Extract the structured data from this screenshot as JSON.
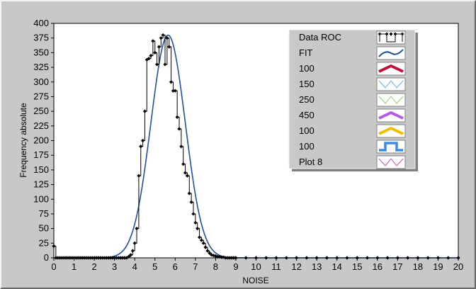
{
  "chart_data": {
    "type": "line",
    "title": "",
    "xlabel": "NOISE",
    "ylabel": "Frequency absolute",
    "xlim": [
      0,
      20
    ],
    "ylim": [
      0,
      400
    ],
    "x_ticks": [
      0,
      1,
      2,
      3,
      4,
      5,
      6,
      7,
      8,
      9,
      10,
      11,
      12,
      13,
      14,
      15,
      16,
      17,
      18,
      19,
      20
    ],
    "y_ticks": [
      0,
      25,
      50,
      75,
      100,
      125,
      150,
      175,
      200,
      225,
      250,
      275,
      300,
      325,
      350,
      375,
      400
    ],
    "grid": false,
    "legend_placement": "top-right",
    "legend": [
      {
        "label": "Data ROC",
        "color": "#000000",
        "swatch": "markers"
      },
      {
        "label": "FIT",
        "color": "#1f4fa0",
        "swatch": "zigzag"
      },
      {
        "label": "100",
        "color": "#c0103a",
        "swatch": "thick-zigzag"
      },
      {
        "label": "150",
        "color": "#5ab4e6",
        "swatch": "thin-zigzag"
      },
      {
        "label": "250",
        "color": "#8fd46a",
        "swatch": "thin-zigzag"
      },
      {
        "label": "450",
        "color": "#b45ae6",
        "swatch": "thick-zigzag"
      },
      {
        "label": "100",
        "color": "#f0c000",
        "swatch": "thick-zigzag"
      },
      {
        "label": "100",
        "color": "#3a8ae6",
        "swatch": "step"
      },
      {
        "label": "Plot 8",
        "color": "#c04fb0",
        "swatch": "thin-zigzag"
      }
    ],
    "series": [
      {
        "name": "Data ROC",
        "color": "#000000",
        "style": "step-markers",
        "x": [
          0.0,
          0.1,
          0.2,
          0.3,
          0.4,
          0.5,
          0.6,
          0.7,
          0.8,
          0.9,
          1.0,
          1.1,
          1.2,
          1.3,
          1.4,
          1.5,
          1.6,
          1.7,
          1.8,
          1.9,
          2.0,
          2.1,
          2.2,
          2.3,
          2.4,
          2.5,
          2.6,
          2.7,
          2.8,
          2.9,
          3.0,
          3.1,
          3.2,
          3.3,
          3.4,
          3.5,
          3.6,
          3.7,
          3.8,
          3.9,
          4.0,
          4.1,
          4.2,
          4.3,
          4.4,
          4.5,
          4.6,
          4.7,
          4.8,
          4.9,
          5.0,
          5.1,
          5.2,
          5.3,
          5.4,
          5.5,
          5.6,
          5.7,
          5.8,
          5.9,
          6.0,
          6.1,
          6.2,
          6.3,
          6.4,
          6.5,
          6.6,
          6.7,
          6.8,
          6.9,
          7.0,
          7.1,
          7.2,
          7.3,
          7.4,
          7.5,
          7.6,
          7.7,
          7.8,
          7.9,
          8.0,
          8.1,
          8.2,
          8.3,
          8.4,
          8.5,
          8.6,
          8.7,
          8.8,
          8.9,
          9.0,
          9.5,
          10.0,
          10.5,
          11.0,
          11.5,
          12.0,
          12.5,
          13.0,
          13.5,
          14.0,
          14.5,
          15.0,
          15.5,
          16.0,
          16.5,
          17.0,
          17.5,
          18.0,
          18.5,
          19.0,
          19.5,
          20.0
        ],
        "y": [
          20,
          0,
          0,
          0,
          0,
          0,
          0,
          0,
          0,
          0,
          0,
          0,
          0,
          0,
          0,
          0,
          0,
          0,
          0,
          0,
          0,
          0,
          0,
          0,
          0,
          0,
          0,
          0,
          0,
          0,
          0,
          0,
          0,
          0,
          0,
          0,
          0,
          2,
          5,
          12,
          25,
          50,
          140,
          190,
          200,
          250,
          338,
          340,
          345,
          370,
          350,
          330,
          360,
          375,
          380,
          330,
          375,
          360,
          300,
          285,
          285,
          240,
          220,
          190,
          160,
          145,
          140,
          110,
          95,
          75,
          60,
          50,
          35,
          30,
          25,
          18,
          12,
          8,
          5,
          4,
          3,
          2,
          2,
          1,
          1,
          0,
          0,
          0,
          0,
          0,
          0,
          0,
          0,
          0,
          0,
          0,
          0,
          0,
          0,
          0,
          0,
          0,
          0,
          0,
          0,
          0,
          0,
          0,
          0,
          0,
          0,
          0,
          0
        ]
      },
      {
        "name": "FIT",
        "color": "#1f4fa0",
        "style": "gaussian-fit",
        "mu": 5.65,
        "sigma": 0.85,
        "amplitude": 380
      }
    ]
  }
}
